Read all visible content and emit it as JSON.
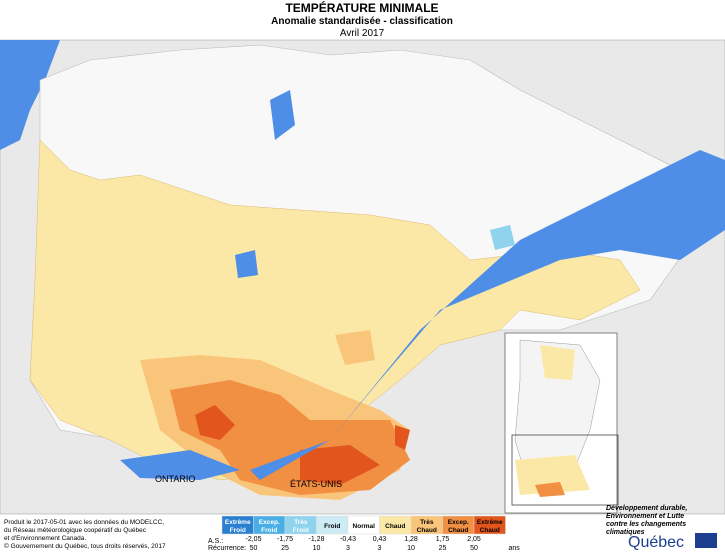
{
  "header": {
    "title": "TEMPÉRATURE MINIMALE",
    "subtitle": "Anomalie standardisée - classification",
    "date": "Avril 2017"
  },
  "map": {
    "labels": [
      "ONTARIO",
      "ÉTATS-UNIS"
    ]
  },
  "credits": [
    "Produit le 2017-05-01 avec les données du MODELCC,",
    "du Réseau météorologique coopératif du Québec",
    "et d'Environnement Canada.",
    "© Gouvernement du Québec, tous droits réservés, 2017"
  ],
  "legend": {
    "classes": [
      {
        "label": [
          "Extrême",
          "Froid"
        ],
        "color": "#2a7fd0"
      },
      {
        "label": [
          "Excep.",
          "Froid"
        ],
        "color": "#49aee6"
      },
      {
        "label": [
          "Très",
          "Froid"
        ],
        "color": "#8fd3ee"
      },
      {
        "label": [
          "Froid"
        ],
        "color": "#cdebf4"
      },
      {
        "label": [
          "Normal"
        ],
        "color": "#ffffff"
      },
      {
        "label": [
          "Chaud"
        ],
        "color": "#fce8a6"
      },
      {
        "label": [
          "Très",
          "Chaud"
        ],
        "color": "#f9c57a"
      },
      {
        "label": [
          "Excep.",
          "Chaud"
        ],
        "color": "#f18f42"
      },
      {
        "label": [
          "Extrême",
          "Chaud"
        ],
        "color": "#e2561e"
      }
    ],
    "as_label": "A.S.:",
    "as_values": [
      "-2,05",
      "-1,75",
      "-1,28",
      "-0,43",
      "0,43",
      "1,28",
      "1,75",
      "2,05"
    ],
    "rec_label": "Récurrence:",
    "rec_values": [
      "50",
      "25",
      "10",
      "3",
      "3",
      "10",
      "25",
      "50"
    ],
    "rec_unit": "ans"
  },
  "logo": {
    "lines": [
      "Développement durable,",
      "Environnement et Lutte",
      "contre les changements",
      "climatiques"
    ],
    "name": "Québec"
  }
}
